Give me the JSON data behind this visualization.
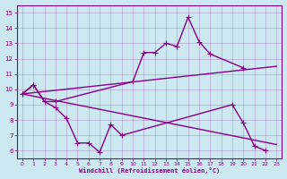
{
  "title": "",
  "xlabel": "Windchill (Refroidissement éolien,°C)",
  "ylabel": "",
  "background_color": "#cce8f0",
  "line_color": "#880088",
  "xlim": [
    -0.5,
    23.5
  ],
  "ylim": [
    5.5,
    15.5
  ],
  "yticks": [
    6,
    7,
    8,
    9,
    10,
    11,
    12,
    13,
    14,
    15
  ],
  "xticks": [
    0,
    1,
    2,
    3,
    4,
    5,
    6,
    7,
    8,
    9,
    10,
    11,
    12,
    13,
    14,
    15,
    16,
    17,
    18,
    19,
    20,
    21,
    22,
    23
  ],
  "series": [
    {
      "x": [
        0,
        1,
        2,
        3,
        4,
        5,
        6,
        7,
        8,
        9,
        19,
        20,
        21,
        22
      ],
      "y": [
        9.7,
        10.3,
        9.2,
        8.8,
        8.1,
        6.5,
        6.5,
        5.9,
        7.7,
        7.0,
        9.0,
        7.8,
        6.3,
        6.0
      ],
      "marker": "+",
      "markersize": 4,
      "linewidth": 1.0
    },
    {
      "x": [
        0,
        1,
        2,
        3,
        10,
        11,
        12,
        13,
        14,
        15,
        16,
        17,
        20
      ],
      "y": [
        9.7,
        10.3,
        9.2,
        9.2,
        10.5,
        12.4,
        12.4,
        13.0,
        12.8,
        14.7,
        13.1,
        12.3,
        11.4
      ],
      "marker": "+",
      "markersize": 4,
      "linewidth": 1.0
    },
    {
      "x": [
        0,
        23
      ],
      "y": [
        9.7,
        11.5
      ],
      "marker": null,
      "markersize": 0,
      "linewidth": 1.0
    },
    {
      "x": [
        0,
        23
      ],
      "y": [
        9.7,
        6.4
      ],
      "marker": null,
      "markersize": 0,
      "linewidth": 1.0
    }
  ]
}
